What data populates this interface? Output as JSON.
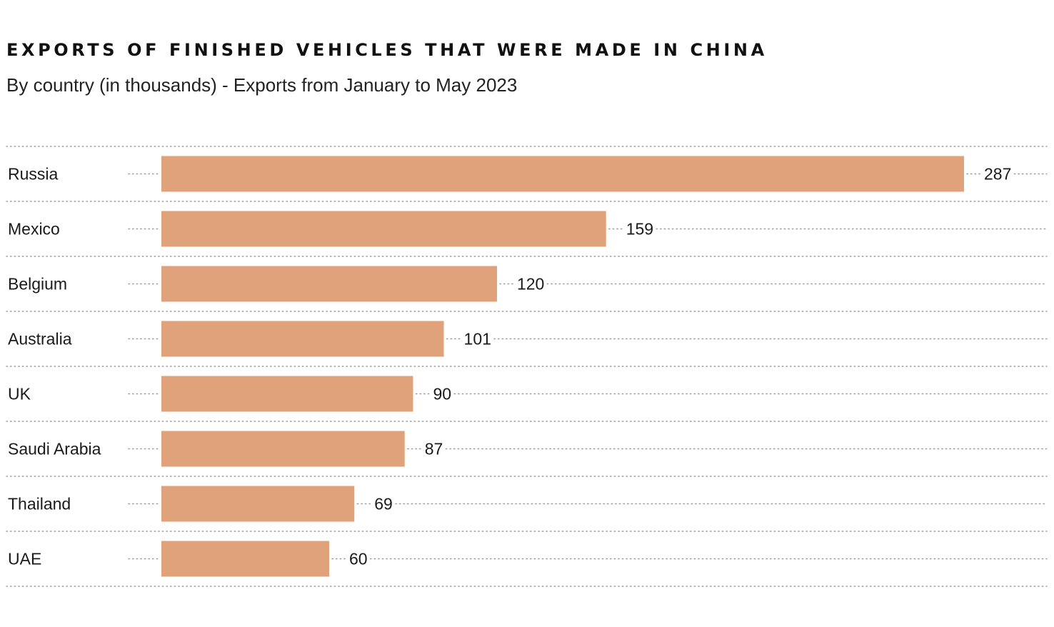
{
  "chart_data": {
    "type": "bar",
    "orientation": "horizontal",
    "title": "EXPORTS OF FINISHED VEHICLES THAT WERE MADE IN CHINA",
    "subtitle": "By country (in thousands) - Exports from January to May 2023",
    "xlabel": "",
    "ylabel": "",
    "categories": [
      "Russia",
      "Mexico",
      "Belgium",
      "Australia",
      "UK",
      "Saudi Arabia",
      "Thailand",
      "UAE"
    ],
    "values": [
      287,
      159,
      120,
      101,
      90,
      87,
      69,
      60
    ],
    "value_labels": [
      "287",
      "159",
      "120",
      "101",
      "90",
      "87",
      "69",
      "60"
    ],
    "xlim": [
      0,
      287
    ],
    "bar_color": "#dfa27a",
    "grid_color": "#9a9a9a",
    "grid": true,
    "legend": "none"
  }
}
